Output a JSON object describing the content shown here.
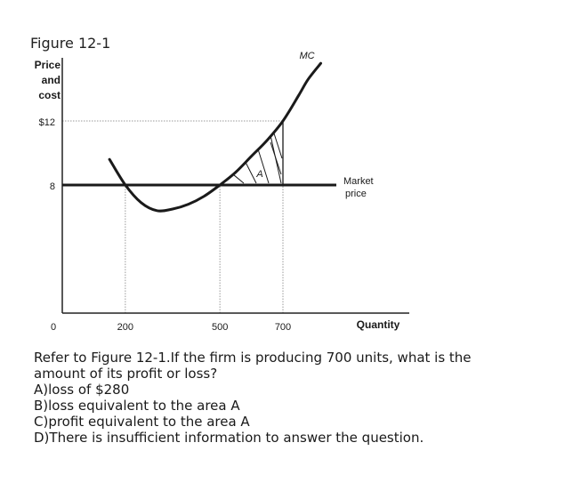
{
  "figure_title": "Figure 12-1",
  "chart_data": {
    "type": "line",
    "ylabel": [
      "Price",
      "and",
      "cost"
    ],
    "xlabel": "Quantity",
    "x_ticks": [
      {
        "value": 0,
        "label": "0"
      },
      {
        "value": 200,
        "label": "200"
      },
      {
        "value": 500,
        "label": "500"
      },
      {
        "value": 700,
        "label": "700"
      }
    ],
    "y_ticks": [
      {
        "value": 8,
        "label": "8"
      },
      {
        "value": 12,
        "label": "$12"
      }
    ],
    "xlim": [
      0,
      1000
    ],
    "ylim": [
      0,
      15
    ],
    "series": [
      {
        "name": "MC",
        "x": [
          150,
          200,
          250,
          300,
          350,
          400,
          450,
          500,
          550,
          600,
          650,
          700,
          750,
          780,
          820
        ],
        "y": [
          9.6,
          8.0,
          6.9,
          6.4,
          6.5,
          6.8,
          7.3,
          8.0,
          8.8,
          9.8,
          10.8,
          12.0,
          13.6,
          14.6,
          15.6
        ]
      },
      {
        "name": "Market price",
        "x": [
          0,
          1000
        ],
        "y": [
          8,
          8
        ]
      }
    ],
    "area_label": "A",
    "annotations": {
      "mc_label": "MC",
      "market_price_label": [
        "Market",
        "price"
      ]
    },
    "guides": [
      {
        "type": "hline",
        "y": 12,
        "x_to": 700
      },
      {
        "type": "vline",
        "x": 200
      },
      {
        "type": "vline",
        "x": 500
      },
      {
        "type": "vline",
        "x": 700
      }
    ],
    "shaded_area": {
      "between": [
        "MC",
        "Market price"
      ],
      "x_from": 500,
      "x_to": 700
    }
  },
  "question": {
    "line1": "Refer to Figure 12-1.If the firm is producing 700 units, what is the",
    "line2": "amount of its profit or loss?",
    "option_a": "A)loss of $280",
    "option_b": "B)loss equivalent to the area A",
    "option_c": "C)profit equivalent to the area A",
    "option_d": "D)There is insufficient information to answer the question."
  }
}
